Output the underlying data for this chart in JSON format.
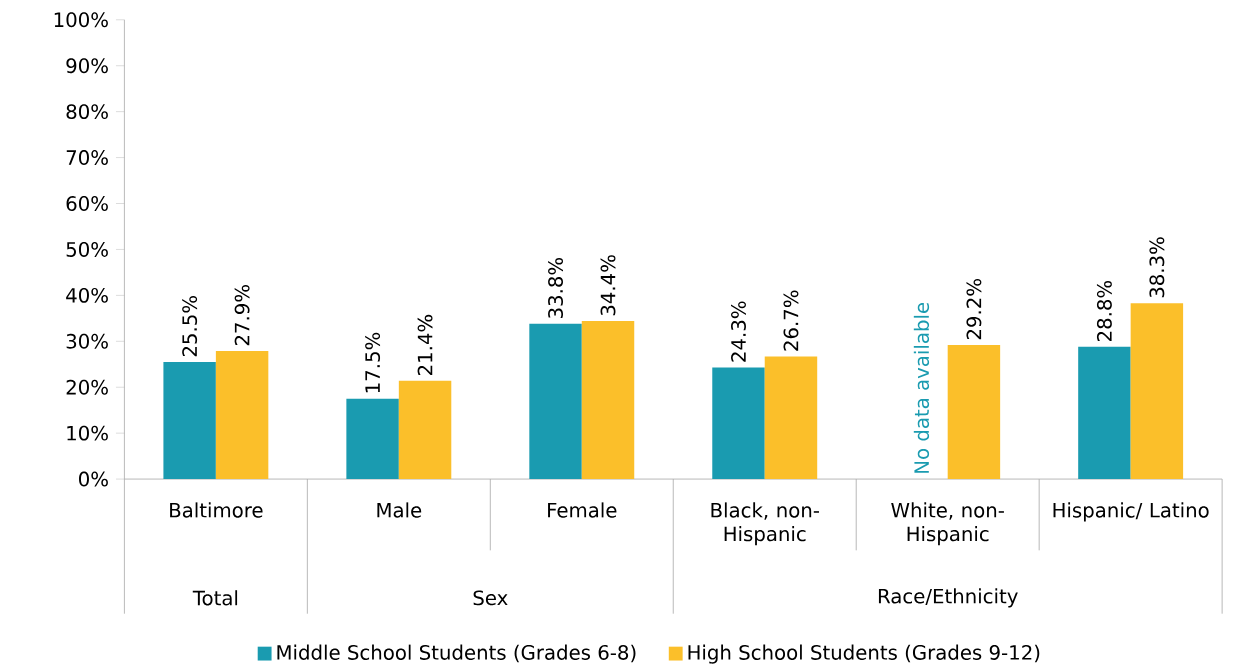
{
  "chart_data": {
    "type": "bar",
    "categories": [
      "Baltimore",
      "Male",
      "Female",
      "Black, non-Hispanic",
      "White, non-Hispanic",
      "Hispanic/ Latino"
    ],
    "series": [
      {
        "name": "Middle School Students (Grades 6-8)",
        "color": "#1a9bb0",
        "values": [
          25.5,
          17.5,
          33.8,
          24.3,
          null,
          28.8
        ],
        "value_labels": [
          "25.5%",
          "17.5%",
          "33.8%",
          "24.3%",
          "No data available",
          "28.8%"
        ]
      },
      {
        "name": "High School Students (Grades 9-12)",
        "color": "#fbbf2a",
        "values": [
          27.9,
          21.4,
          34.4,
          26.7,
          29.2,
          38.3
        ],
        "value_labels": [
          "27.9%",
          "21.4%",
          "34.4%",
          "26.7%",
          "29.2%",
          "38.3%"
        ]
      }
    ],
    "ylim": [
      0,
      100
    ],
    "yticks": [
      {
        "value": 0,
        "label": "0%"
      },
      {
        "value": 10,
        "label": "10%"
      },
      {
        "value": 20,
        "label": "20%"
      },
      {
        "value": 30,
        "label": "30%"
      },
      {
        "value": 40,
        "label": "40%"
      },
      {
        "value": 50,
        "label": "50%"
      },
      {
        "value": 60,
        "label": "60%"
      },
      {
        "value": 70,
        "label": "70%"
      },
      {
        "value": 80,
        "label": "80%"
      },
      {
        "value": 90,
        "label": "90%"
      },
      {
        "value": 100,
        "label": "100%"
      }
    ],
    "annotations": [
      "Total",
      "Sex",
      "Race/Ethnicity"
    ],
    "legend": "bottom"
  }
}
